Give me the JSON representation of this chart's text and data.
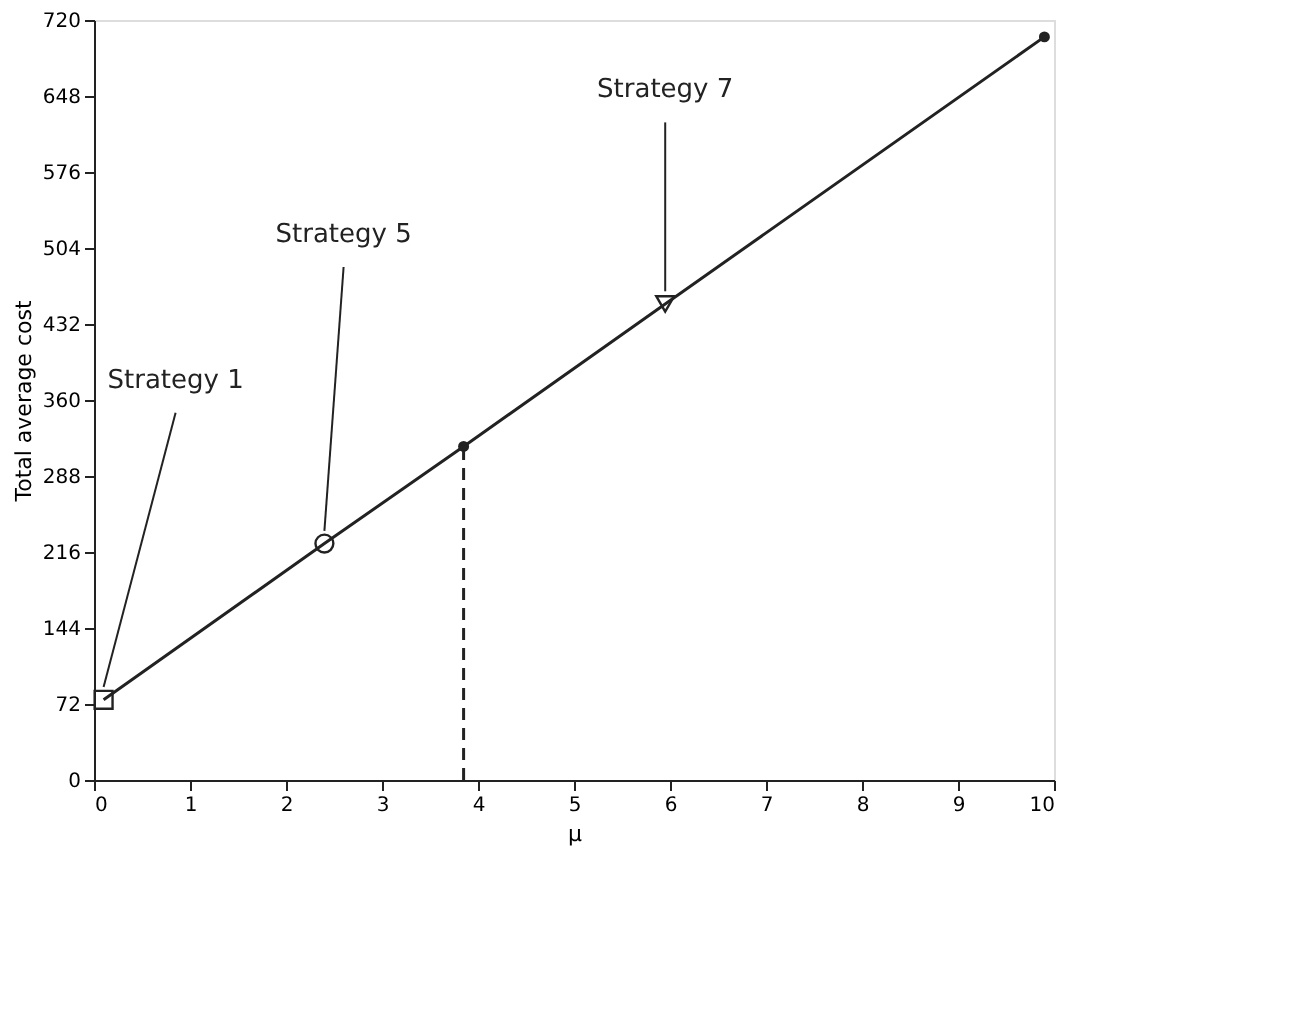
{
  "chart_data": {
    "type": "line",
    "xlabel": "μ",
    "ylabel": "Total average cost",
    "xlim": [
      0,
      10
    ],
    "xticks": [
      0,
      1,
      2,
      3,
      4,
      5,
      6,
      7,
      8,
      9,
      10
    ],
    "ylim": [
      0,
      720
    ],
    "yticks": [
      0,
      72,
      144,
      216,
      288,
      360,
      432,
      504,
      576,
      648,
      720
    ],
    "grid": false,
    "series": [
      {
        "color": "#222222",
        "x": [
          0.1,
          2.4,
          3.85,
          5.95,
          9.9
        ],
        "values": [
          76,
          224,
          316,
          451,
          704
        ],
        "marker": "none",
        "line_style": "solid"
      },
      {
        "type": "scatter",
        "color": "#222222",
        "x": [
          0.1
        ],
        "values": [
          76
        ],
        "marker": "square"
      },
      {
        "type": "scatter",
        "color": "#222222",
        "x": [
          2.4
        ],
        "values": [
          224
        ],
        "marker": "circle"
      },
      {
        "type": "scatter",
        "color": "#222222",
        "x": [
          5.95
        ],
        "values": [
          451
        ],
        "marker": "triangle"
      },
      {
        "type": "scatter",
        "color": "#222222",
        "x": [
          3.85,
          9.9
        ],
        "values": [
          316,
          704
        ],
        "marker": "dot"
      }
    ],
    "ref_lines": [
      {
        "axis": "x",
        "value": 3.85,
        "line_style": "dashed",
        "color": "#222222"
      }
    ],
    "annotations": [
      {
        "text": "Strategy 1",
        "x": 0.1,
        "y": 76
      },
      {
        "text": "Strategy 5",
        "x": 2.4,
        "y": 224
      },
      {
        "text": "Strategy 7",
        "x": 5.95,
        "y": 451
      }
    ]
  }
}
